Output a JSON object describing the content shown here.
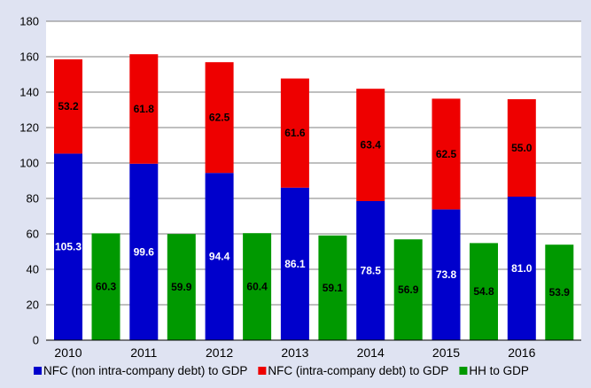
{
  "chart_data": {
    "type": "bar",
    "categories": [
      "2010",
      "2011",
      "2012",
      "2013",
      "2014",
      "2015",
      "2016"
    ],
    "ylim": [
      0,
      180
    ],
    "yticks": [
      0,
      20,
      40,
      60,
      80,
      100,
      120,
      140,
      160,
      180
    ],
    "grid": true,
    "legend_position": "bottom",
    "series": [
      {
        "name": "NFC (non intra-company debt) to GDP",
        "stack": "NFC",
        "color": "#0000cc",
        "values": [
          105.3,
          99.6,
          94.4,
          86.1,
          78.5,
          73.8,
          81.0
        ],
        "labels": [
          "105.3",
          "99.6",
          "94.4",
          "86.1",
          "78.5",
          "73.8",
          "81.0"
        ]
      },
      {
        "name": "NFC (intra-company debt) to GDP",
        "stack": "NFC",
        "color": "#ee0000",
        "values": [
          53.2,
          61.8,
          62.5,
          61.6,
          63.4,
          62.5,
          55.0
        ],
        "labels": [
          "53.2",
          "61.8",
          "62.5",
          "61.6",
          "63.4",
          "62.5",
          "55.0"
        ]
      },
      {
        "name": "HH to GDP",
        "stack": "HH",
        "color": "#009900",
        "values": [
          60.3,
          59.9,
          60.4,
          59.1,
          56.9,
          54.8,
          53.9
        ],
        "labels": [
          "60.3",
          "59.9",
          "60.4",
          "59.1",
          "56.9",
          "54.8",
          "53.9"
        ]
      }
    ]
  }
}
